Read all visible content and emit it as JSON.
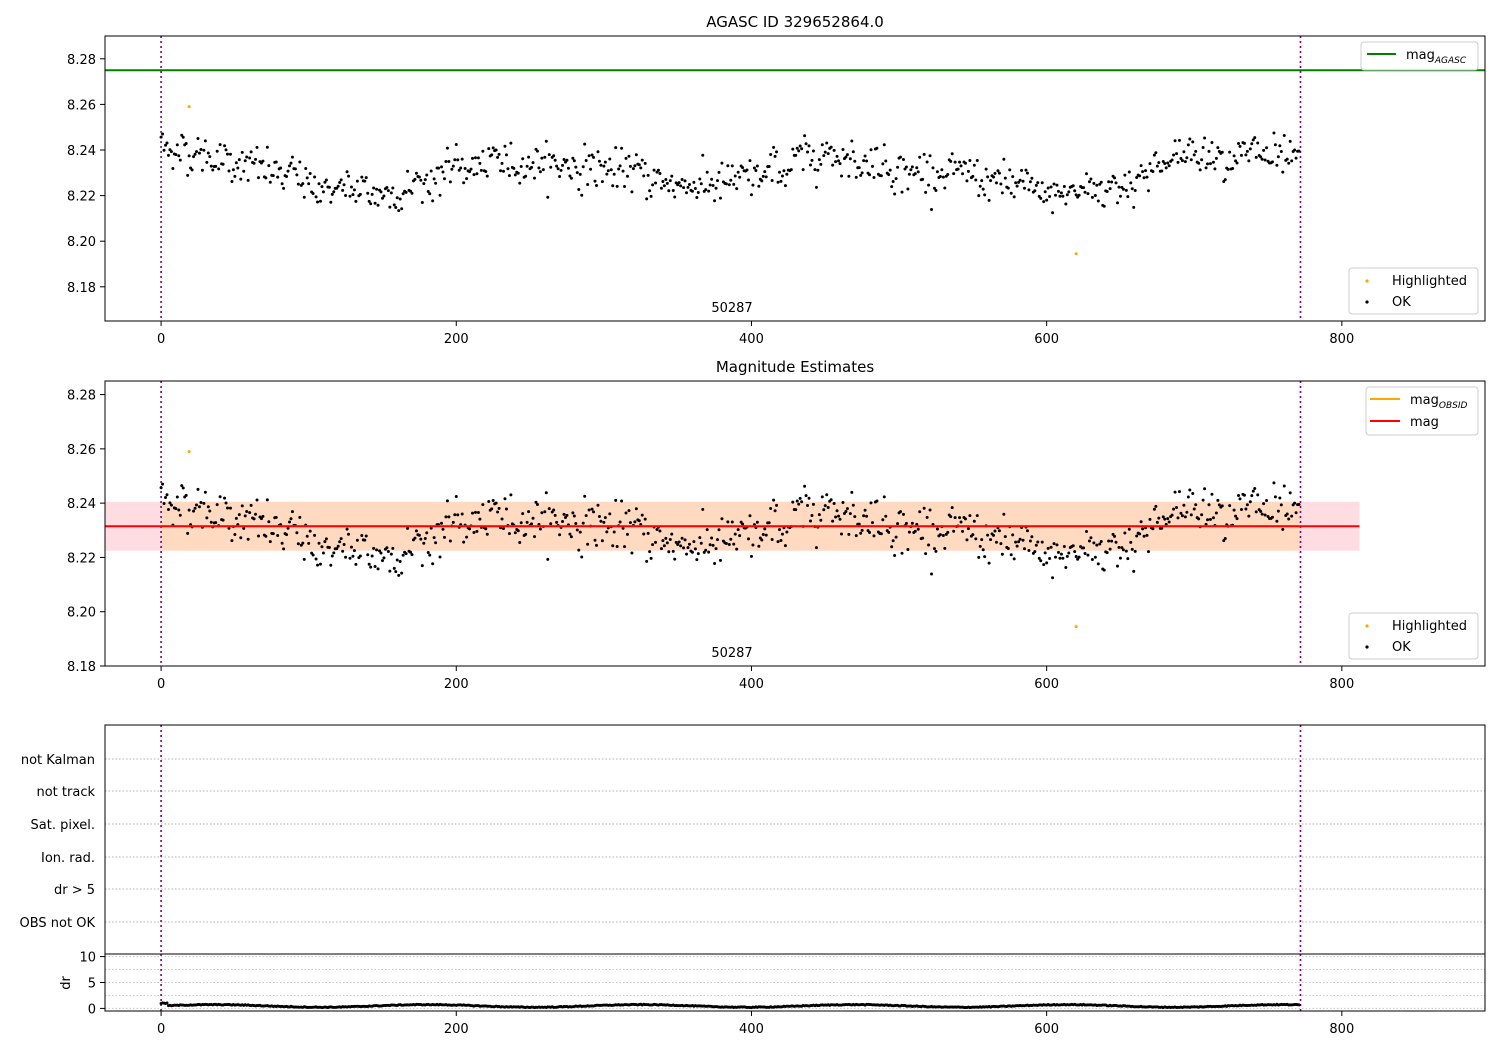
{
  "figure": {
    "background": "#ffffff"
  },
  "chart_data": [
    {
      "type": "scatter",
      "title": "AGASC ID 329652864.0",
      "xlabel": "",
      "ylabel": "",
      "xlim": [
        -38,
        897
      ],
      "ylim": [
        8.165,
        8.29
      ],
      "xticks": [
        0,
        200,
        400,
        600,
        800
      ],
      "yticks": [
        8.18,
        8.2,
        8.22,
        8.24,
        8.26,
        8.28
      ],
      "obsid_label": "50287",
      "vlines": [
        0,
        772
      ],
      "mag_agasc": 8.275,
      "legend_upper": {
        "position": "top-right",
        "entries": [
          {
            "label": "mag",
            "sub": "AGASC",
            "color": "#008000"
          }
        ]
      },
      "legend_lower": {
        "position": "bottom-right",
        "entries": [
          {
            "label": "Highlighted",
            "color": "#ffa500"
          },
          {
            "label": "OK",
            "color": "#000000"
          }
        ]
      },
      "highlighted": [
        {
          "x": 19,
          "y": 8.259
        },
        {
          "x": 620,
          "y": 8.1945
        }
      ],
      "series_ok": {
        "n": 772,
        "trend_x": [
          0,
          50,
          100,
          150,
          200,
          250,
          300,
          350,
          400,
          450,
          500,
          550,
          600,
          650,
          700,
          750,
          772
        ],
        "trend_y": [
          8.242,
          8.235,
          8.225,
          8.22,
          8.232,
          8.235,
          8.232,
          8.225,
          8.226,
          8.24,
          8.232,
          8.228,
          8.22,
          8.225,
          8.24,
          8.237,
          8.232
        ],
        "scatter": 0.0075
      }
    },
    {
      "type": "scatter",
      "title": "Magnitude Estimates",
      "xlabel": "",
      "ylabel": "",
      "xlim": [
        -38,
        897
      ],
      "ylim": [
        8.18,
        8.285
      ],
      "xticks": [
        0,
        200,
        400,
        600,
        800
      ],
      "yticks": [
        8.18,
        8.2,
        8.22,
        8.24,
        8.26,
        8.28
      ],
      "obsid_label": "50287",
      "vlines": [
        0,
        772
      ],
      "mag_mean": 8.2315,
      "band_mag": [
        8.2225,
        8.2405
      ],
      "band_obsid": [
        8.2225,
        8.2405
      ],
      "band_xrange": [
        -38,
        812
      ],
      "legend_upper": {
        "position": "top-right",
        "entries": [
          {
            "label": "mag",
            "sub": "OBSID",
            "color": "#ffa500"
          },
          {
            "label": "mag",
            "sub": "",
            "color": "#ff0000"
          }
        ]
      },
      "legend_lower": {
        "position": "bottom-right",
        "entries": [
          {
            "label": "Highlighted",
            "color": "#ffa500"
          },
          {
            "label": "OK",
            "color": "#000000"
          }
        ]
      },
      "colors": {
        "band_mag": "#ffc0cb",
        "band_obsid": "#ffdab9"
      }
    },
    {
      "type": "scatter",
      "title": "",
      "xlim": [
        -38,
        897
      ],
      "flag_labels": [
        "not Kalman",
        "not track",
        "Sat. pixel.",
        "Ion. rad.",
        "dr > 5",
        "OBS not OK"
      ],
      "vlines": [
        0,
        772
      ]
    },
    {
      "type": "scatter",
      "title": "",
      "xlabel": "",
      "ylabel": "dr",
      "xlim": [
        -38,
        897
      ],
      "ylim": [
        -0.5,
        10.5
      ],
      "xticks": [
        0,
        200,
        400,
        600,
        800
      ],
      "yticks": [
        0,
        5,
        10
      ],
      "vlines": [
        0,
        772
      ]
    }
  ]
}
